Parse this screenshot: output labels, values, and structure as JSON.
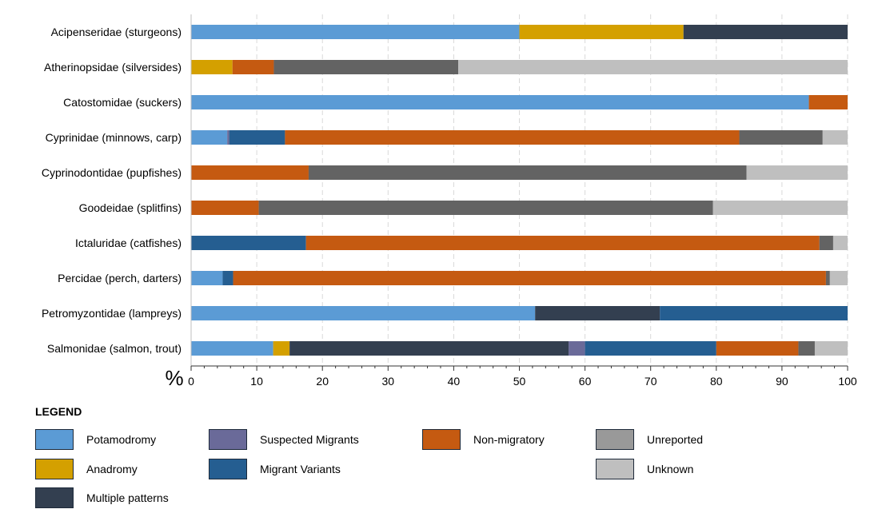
{
  "chart_data": {
    "type": "bar",
    "orientation": "horizontal",
    "stacked": true,
    "categories": [
      "Acipenseridae (sturgeons)",
      "Atherinopsidae (silversides)",
      "Catostomidae (suckers)",
      "Cyprinidae (minnows, carp)",
      "Cyprinodontidae (pupfishes)",
      "Goodeidae (splitfins)",
      "Ictaluridae (catfishes)",
      "Percidae (perch, darters)",
      "Petromyzontidae (lampreys)",
      "Salmonidae (salmon, trout)"
    ],
    "series": [
      {
        "name": "Potamodromy",
        "color": "#5b9bd5",
        "values": [
          50,
          0,
          94.1,
          5.5,
          0,
          0,
          0,
          4.8,
          52.4,
          12.5
        ]
      },
      {
        "name": "Anadromy",
        "color": "#d4a000",
        "values": [
          25,
          6.3,
          0,
          0,
          0,
          0,
          0,
          0,
          0,
          2.5
        ]
      },
      {
        "name": "Multiple patterns",
        "color": "#333f50",
        "values": [
          25,
          0,
          0,
          0,
          0,
          0,
          0,
          0,
          19,
          42.5
        ]
      },
      {
        "name": "Suspected Migrants",
        "color": "#6a6a99",
        "values": [
          0,
          0,
          0,
          0.3,
          0,
          0,
          0,
          0,
          0,
          2.5
        ]
      },
      {
        "name": "Migrant Variants",
        "color": "#255e91",
        "values": [
          0,
          0,
          0,
          8.5,
          0,
          0,
          17.5,
          1.6,
          28.6,
          20
        ]
      },
      {
        "name": "Non-migratory",
        "color": "#c55a11",
        "values": [
          0,
          6.3,
          5.9,
          69.2,
          17.9,
          10.3,
          78.2,
          90.3,
          0,
          12.5
        ]
      },
      {
        "name": "Unreported",
        "color": "#636363",
        "values": [
          0,
          28.1,
          0,
          12.7,
          66.7,
          69.2,
          2.1,
          0.6,
          0,
          2.5
        ]
      },
      {
        "name": "Unknown",
        "color": "#bfbfbf",
        "values": [
          0,
          59.3,
          0,
          3.8,
          15.4,
          20.5,
          2.2,
          2.7,
          0,
          5
        ]
      }
    ],
    "xlim": [
      0,
      100
    ],
    "xticks": [
      "0",
      "10",
      "20",
      "30",
      "40",
      "50",
      "60",
      "70",
      "80",
      "90",
      "100"
    ],
    "xunit": "%",
    "grid": "vertical dashed",
    "legend_title": "LEGEND",
    "legend_placement": "bottom",
    "legend": [
      {
        "label": "Potamodromy",
        "color": "#5b9bd5"
      },
      {
        "label": "Anadromy",
        "color": "#d4a000"
      },
      {
        "label": "Multiple patterns",
        "color": "#333f50"
      },
      {
        "label": "Suspected Migrants",
        "color": "#6a6a99"
      },
      {
        "label": "Migrant Variants",
        "color": "#255e91"
      },
      {
        "label": "Non-migratory",
        "color": "#c55a11"
      },
      {
        "label": "Unreported",
        "color": "#999999"
      },
      {
        "label": "Unknown",
        "color": "#bfbfbf"
      }
    ]
  }
}
